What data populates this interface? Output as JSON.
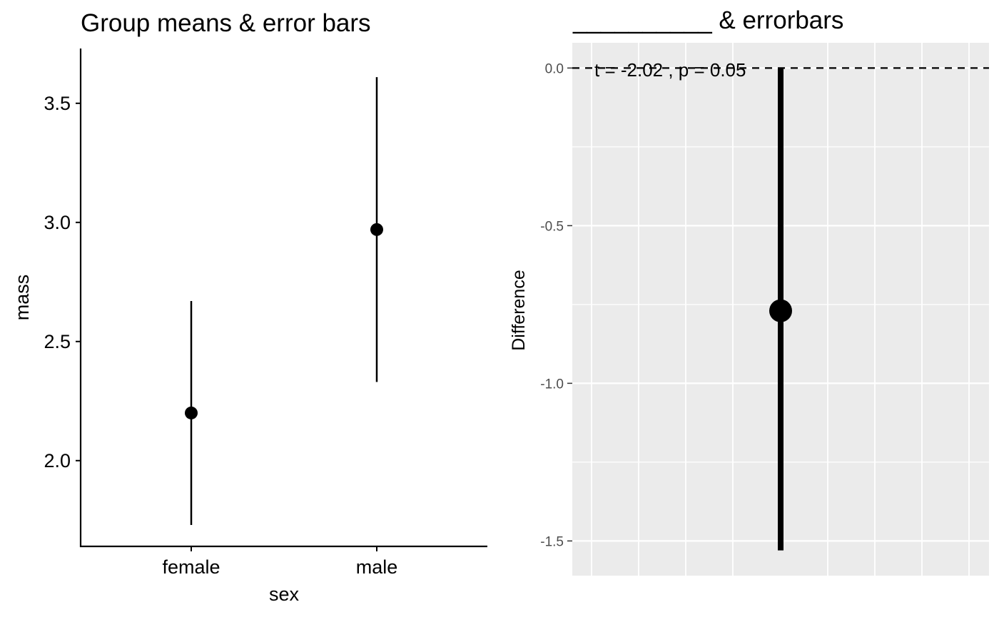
{
  "chart_data": [
    {
      "type": "scatter",
      "title": "Group means & error bars",
      "xlabel": "sex",
      "ylabel": "mass",
      "categories": [
        "female",
        "male"
      ],
      "values": [
        2.2,
        2.97
      ],
      "error_low": [
        1.73,
        2.33
      ],
      "error_high": [
        2.67,
        3.61
      ],
      "ylim": [
        1.64,
        3.73
      ],
      "y_ticks": [
        "2.0",
        "2.5",
        "3.0",
        "3.5"
      ],
      "grid": false,
      "point_color": "#000000"
    },
    {
      "type": "scatter",
      "title": "__________ & errorbars",
      "xlabel": "",
      "ylabel": "Difference",
      "points": [
        {
          "x": 0,
          "y": -0.77,
          "low": -1.53,
          "high": 0.0
        }
      ],
      "reference_line_y": 0,
      "annotation": "t = -2.02 , p = 0.05",
      "ylim": [
        -1.61,
        0.08
      ],
      "y_ticks": [
        "0.0",
        "-0.5",
        "-1.0",
        "-1.5"
      ],
      "grid": true,
      "panel_background": "#ebebeb",
      "gridline_color": "#ffffff"
    }
  ]
}
